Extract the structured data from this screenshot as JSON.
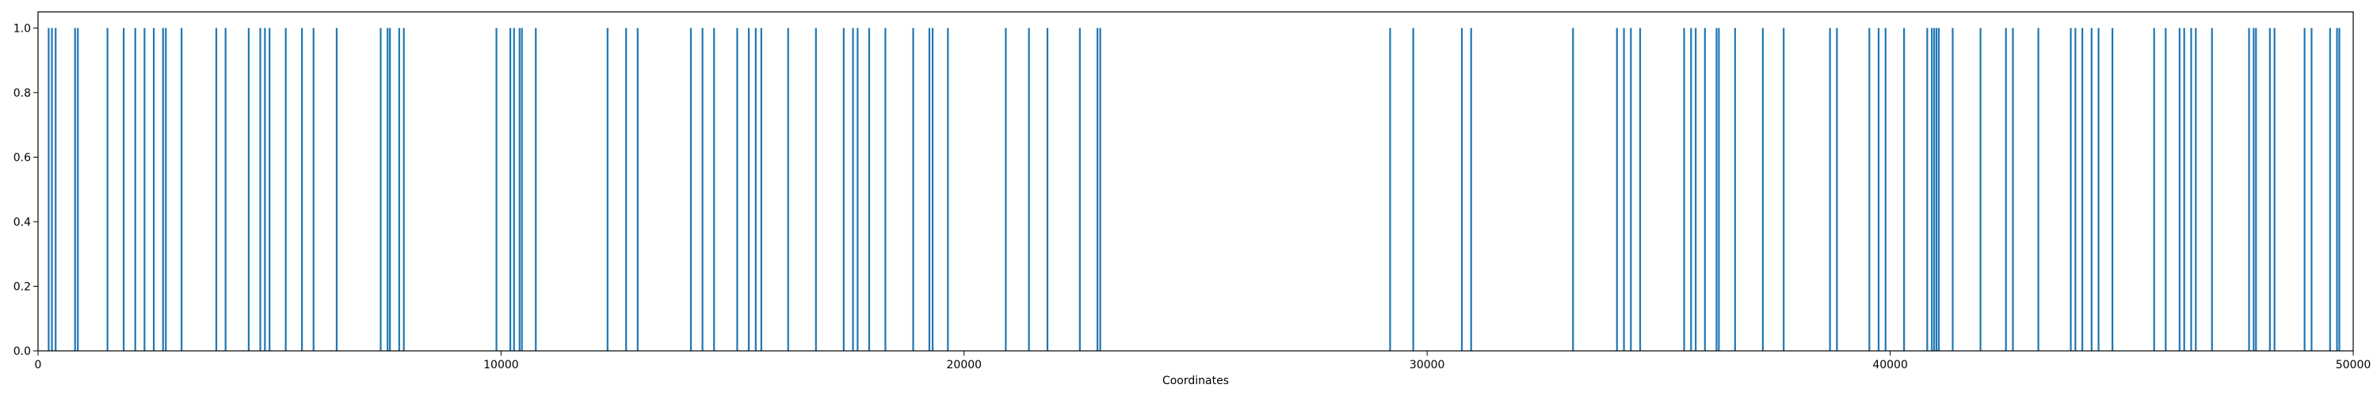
{
  "chart_data": {
    "type": "bar",
    "xlabel": "Coordinates",
    "ylabel": "",
    "title": "",
    "xlim": [
      0,
      50000
    ],
    "ylim": [
      0,
      1.05
    ],
    "grid": false,
    "bar_color": "#1f77b4",
    "x_ticks": [
      0,
      10000,
      20000,
      30000,
      40000,
      50000
    ],
    "x_tick_labels": [
      "0",
      "10000",
      "20000",
      "30000",
      "40000",
      "50000"
    ],
    "y_ticks": [
      0.0,
      0.2,
      0.4,
      0.6,
      0.8,
      1.0
    ],
    "y_tick_labels": [
      "0.0",
      "0.2",
      "0.4",
      "0.6",
      "0.8",
      "1.0"
    ],
    "bar_value": 1.0,
    "bar_positions": [
      230,
      300,
      380,
      800,
      860,
      1500,
      1850,
      2100,
      2300,
      2500,
      2700,
      2760,
      3100,
      3850,
      4050,
      4550,
      4800,
      4900,
      5000,
      5350,
      5700,
      5950,
      6450,
      7400,
      7550,
      7600,
      7800,
      7900,
      9900,
      10200,
      10280,
      10400,
      10450,
      10750,
      12300,
      12700,
      12950,
      14100,
      14350,
      14600,
      15100,
      15350,
      15500,
      15620,
      16200,
      16800,
      17400,
      17600,
      17700,
      17950,
      18300,
      18900,
      19250,
      19320,
      19650,
      20900,
      21400,
      21800,
      22500,
      22880,
      22940,
      29200,
      29700,
      30750,
      30950,
      33150,
      34100,
      34250,
      34400,
      34600,
      35550,
      35700,
      35800,
      36000,
      36250,
      36300,
      36650,
      37250,
      37700,
      38700,
      38850,
      39550,
      39750,
      39900,
      40300,
      40800,
      40900,
      40950,
      41000,
      41050,
      41350,
      41950,
      42500,
      42650,
      43200,
      43900,
      44000,
      44150,
      44350,
      44500,
      44800,
      45700,
      45950,
      46250,
      46350,
      46500,
      46600,
      46950,
      47750,
      47850,
      47900,
      48200,
      48300,
      48950,
      49100,
      49500,
      49650,
      49700
    ]
  }
}
